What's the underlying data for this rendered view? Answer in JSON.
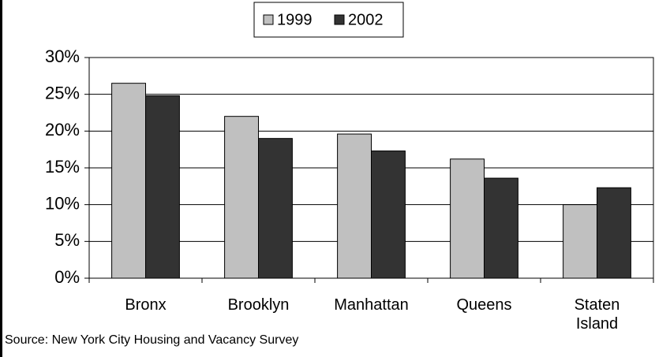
{
  "chart_data": {
    "type": "bar",
    "categories": [
      "Bronx",
      "Brooklyn",
      "Manhattan",
      "Queens",
      "Staten Island"
    ],
    "series": [
      {
        "name": "1999",
        "color": "#c0c0c0",
        "values": [
          26.5,
          22.0,
          19.6,
          16.2,
          10.0
        ]
      },
      {
        "name": "2002",
        "color": "#333333",
        "values": [
          24.8,
          19.0,
          17.3,
          13.6,
          12.3
        ]
      }
    ],
    "ylim": [
      0,
      30
    ],
    "yticks": [
      {
        "value": 0,
        "label": "0%"
      },
      {
        "value": 5,
        "label": "5%"
      },
      {
        "value": 10,
        "label": "10%"
      },
      {
        "value": 15,
        "label": "15%"
      },
      {
        "value": 20,
        "label": "20%"
      },
      {
        "value": 25,
        "label": "25%"
      },
      {
        "value": 30,
        "label": "30%"
      }
    ],
    "grid": true,
    "legend": "top",
    "source": "Source: New York City Housing and Vacancy Survey"
  }
}
